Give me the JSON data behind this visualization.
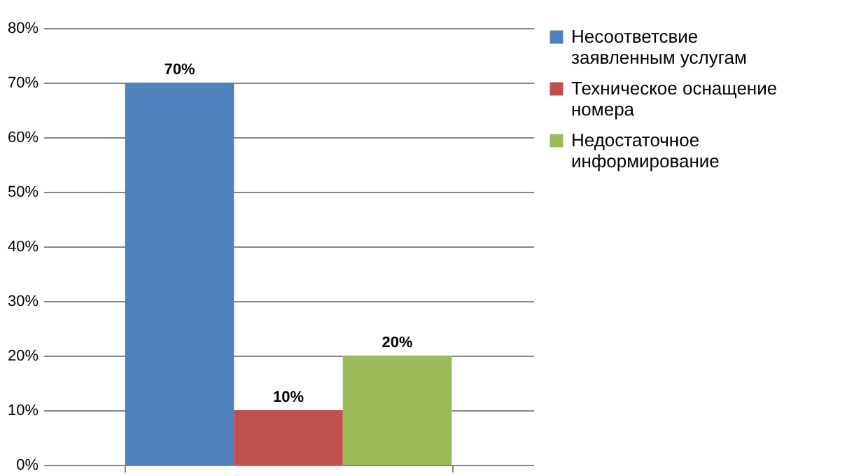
{
  "chart_data": {
    "type": "bar",
    "categories": [
      null
    ],
    "series": [
      {
        "name": "Несоответсвие заявленным услугам",
        "color": "#4f81bd",
        "values": [
          70
        ],
        "value_labels": [
          "70%"
        ]
      },
      {
        "name": "Техническое оснащение номера",
        "color": "#c0504d",
        "values": [
          10
        ],
        "value_labels": [
          "10%"
        ]
      },
      {
        "name": "Недостаточное информирование",
        "color": "#9bbb59",
        "values": [
          20
        ],
        "value_labels": [
          "20%"
        ]
      }
    ],
    "ylim": [
      0,
      80
    ],
    "yticks": [
      {
        "value": 0,
        "label": "0%"
      },
      {
        "value": 10,
        "label": "10%"
      },
      {
        "value": 20,
        "label": "20%"
      },
      {
        "value": 30,
        "label": "30%"
      },
      {
        "value": 40,
        "label": "40%"
      },
      {
        "value": 50,
        "label": "50%"
      },
      {
        "value": 60,
        "label": "60%"
      },
      {
        "value": 70,
        "label": "70%"
      },
      {
        "value": 80,
        "label": "80%"
      }
    ],
    "grid": "y",
    "legend": "right",
    "tick_labels": "y"
  }
}
